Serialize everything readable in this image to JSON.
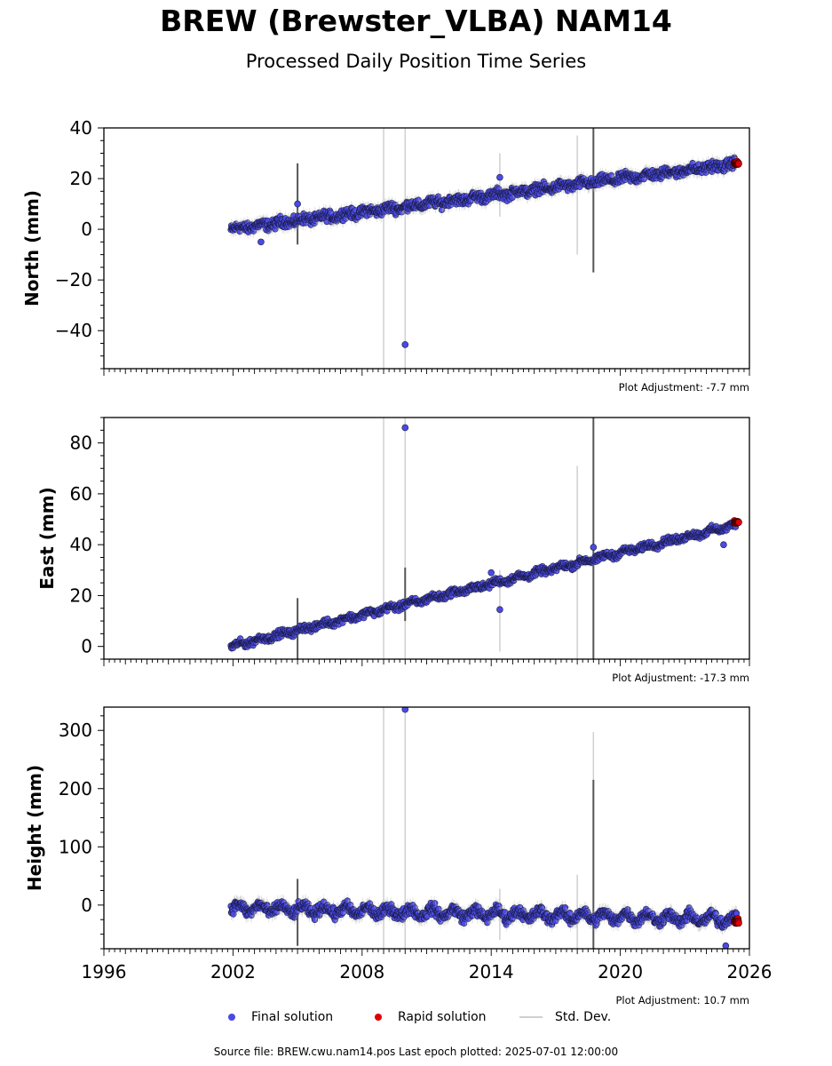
{
  "title": "BREW (Brewster_VLBA) NAM14",
  "subtitle": "Processed Daily Position Time Series",
  "legend": {
    "final_label": "Final solution",
    "rapid_label": "Rapid solution",
    "stddev_label": "Std. Dev."
  },
  "colors": {
    "final": "#4a4ae6",
    "rapid": "#e00000",
    "stddev": "#d0d0d0",
    "stddev_dark": "#555555",
    "edge": "#1a1a40"
  },
  "footer": "Source file: BREW.cwu.nam14.pos  Last epoch plotted: 2025-07-01 12:00:00",
  "chart_data": [
    {
      "type": "scatter",
      "ylabel": "North (mm)",
      "adjustment": "Plot Adjustment: -7.7 mm",
      "xlim": [
        1996,
        2026
      ],
      "ylim": [
        -55,
        40
      ],
      "yticks": [
        40,
        20,
        0,
        -20,
        -40
      ],
      "xticks": [],
      "trend": {
        "start": [
          2001.9,
          0
        ],
        "end": [
          2025.5,
          26
        ]
      },
      "scatter_amplitude": 3,
      "final_end": 2025.4,
      "rapid": {
        "x_range": [
          2025.3,
          2025.5
        ],
        "y": 26
      },
      "outliers": [
        [
          2010.0,
          -45.5
        ],
        [
          2014.4,
          20.5
        ],
        [
          2005.0,
          10.0
        ],
        [
          2003.3,
          -5.0
        ]
      ],
      "stddev_lines": [
        {
          "x": 2009.0,
          "y0": -55,
          "y1": 40,
          "dark": false
        },
        {
          "x": 2010.0,
          "y0": -55,
          "y1": 40,
          "dark": false
        },
        {
          "x": 2018.0,
          "y0": -10,
          "y1": 37,
          "dark": false
        },
        {
          "x": 2018.75,
          "y0": -17,
          "y1": 40,
          "dark": true
        },
        {
          "x": 2014.4,
          "y0": 5,
          "y1": 30,
          "dark": false
        },
        {
          "x": 2005.0,
          "y0": -6,
          "y1": 26,
          "dark": true
        }
      ]
    },
    {
      "type": "scatter",
      "ylabel": "East (mm)",
      "adjustment": "Plot Adjustment: -17.3 mm",
      "xlim": [
        1996,
        2026
      ],
      "ylim": [
        -5,
        90
      ],
      "yticks": [
        80,
        60,
        40,
        20,
        0
      ],
      "xticks": [],
      "trend": {
        "start": [
          2001.9,
          0
        ],
        "end": [
          2025.5,
          48
        ]
      },
      "scatter_amplitude": 2,
      "final_end": 2025.4,
      "rapid": {
        "x_range": [
          2025.3,
          2025.5
        ],
        "y": 49
      },
      "outliers": [
        [
          2010.0,
          86
        ],
        [
          2014.4,
          14.5
        ],
        [
          2014.0,
          29
        ],
        [
          2018.75,
          39
        ],
        [
          2024.8,
          40
        ]
      ],
      "stddev_lines": [
        {
          "x": 2009.0,
          "y0": -5,
          "y1": 90,
          "dark": false
        },
        {
          "x": 2010.0,
          "y0": -5,
          "y1": 90,
          "dark": false
        },
        {
          "x": 2018.0,
          "y0": -5,
          "y1": 71,
          "dark": false
        },
        {
          "x": 2018.75,
          "y0": -5,
          "y1": 90,
          "dark": true
        },
        {
          "x": 2014.4,
          "y0": -2,
          "y1": 30,
          "dark": false
        },
        {
          "x": 2005.0,
          "y0": -5,
          "y1": 19,
          "dark": true
        },
        {
          "x": 2010.0,
          "y0": 10,
          "y1": 31,
          "dark": true
        }
      ]
    },
    {
      "type": "scatter",
      "ylabel": "Height (mm)",
      "adjustment": "Plot Adjustment: 10.7 mm",
      "xlim": [
        1996,
        2026
      ],
      "ylim": [
        -75,
        340
      ],
      "yticks": [
        300,
        200,
        100,
        0
      ],
      "xticks": [
        1996,
        2002,
        2008,
        2014,
        2020,
        2026
      ],
      "trend": {
        "start": [
          2001.9,
          -5
        ],
        "end": [
          2025.5,
          -25
        ]
      },
      "scatter_amplitude": 14,
      "final_end": 2025.4,
      "rapid": {
        "x_range": [
          2025.3,
          2025.5
        ],
        "y": -28
      },
      "outliers": [
        [
          2010.0,
          336
        ],
        [
          2024.9,
          -70
        ]
      ],
      "stddev_lines": [
        {
          "x": 2009.0,
          "y0": -75,
          "y1": 340,
          "dark": false
        },
        {
          "x": 2010.0,
          "y0": -75,
          "y1": 340,
          "dark": false
        },
        {
          "x": 2018.0,
          "y0": -75,
          "y1": 52,
          "dark": false
        },
        {
          "x": 2018.75,
          "y0": -75,
          "y1": 297,
          "dark": false
        },
        {
          "x": 2018.75,
          "y0": -75,
          "y1": 215,
          "dark": true
        },
        {
          "x": 2014.4,
          "y0": -60,
          "y1": 28,
          "dark": false
        },
        {
          "x": 2005.0,
          "y0": -70,
          "y1": 45,
          "dark": true
        }
      ]
    }
  ]
}
